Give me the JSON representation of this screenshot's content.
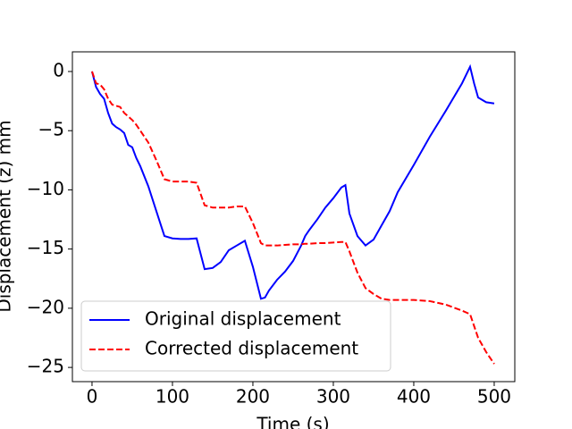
{
  "chart_data": {
    "type": "line",
    "xlabel": "Time (s)",
    "ylabel": "Displacement (z) mm",
    "x": [
      0,
      5,
      10,
      15,
      20,
      25,
      30,
      35,
      40,
      45,
      50,
      55,
      60,
      70,
      80,
      90,
      100,
      110,
      120,
      130,
      140,
      150,
      160,
      170,
      180,
      190,
      200,
      210,
      215,
      220,
      230,
      240,
      250,
      260,
      265,
      270,
      280,
      290,
      300,
      310,
      315,
      320,
      330,
      340,
      350,
      360,
      370,
      380,
      400,
      420,
      440,
      460,
      470,
      475,
      480,
      490,
      500
    ],
    "series": [
      {
        "name": "Original displacement",
        "color": "#0000ff",
        "style": "solid",
        "values": [
          0,
          -1.3,
          -1.9,
          -2.3,
          -3.5,
          -4.4,
          -4.7,
          -4.9,
          -5.2,
          -6.2,
          -6.4,
          -7.3,
          -8.0,
          -9.7,
          -11.8,
          -13.9,
          -14.1,
          -14.15,
          -14.15,
          -14.1,
          -16.7,
          -16.6,
          -16.1,
          -15.1,
          -14.7,
          -14.3,
          -16.5,
          -19.2,
          -19.1,
          -18.5,
          -17.6,
          -16.9,
          -16.0,
          -14.7,
          -13.9,
          -13.4,
          -12.5,
          -11.5,
          -10.7,
          -9.8,
          -9.6,
          -12.0,
          -13.9,
          -14.7,
          -14.2,
          -13.0,
          -11.8,
          -10.2,
          -7.9,
          -5.5,
          -3.3,
          -1.0,
          0.4,
          -1.0,
          -2.2,
          -2.6,
          -2.7
        ]
      },
      {
        "name": "Corrected displacement",
        "color": "#ff0000",
        "style": "dashed",
        "values": [
          0,
          -1.0,
          -1.1,
          -1.5,
          -2.3,
          -2.8,
          -2.9,
          -3.0,
          -3.5,
          -3.8,
          -4.1,
          -4.5,
          -5.0,
          -6.0,
          -7.5,
          -9.1,
          -9.3,
          -9.3,
          -9.3,
          -9.4,
          -11.3,
          -11.5,
          -11.5,
          -11.5,
          -11.4,
          -11.4,
          -12.8,
          -14.5,
          -14.7,
          -14.7,
          -14.7,
          -14.65,
          -14.6,
          -14.6,
          -14.55,
          -14.55,
          -14.5,
          -14.5,
          -14.45,
          -14.4,
          -14.4,
          -15.2,
          -17.0,
          -18.3,
          -18.8,
          -19.2,
          -19.3,
          -19.3,
          -19.3,
          -19.4,
          -19.7,
          -20.2,
          -20.5,
          -21.5,
          -22.5,
          -23.7,
          -24.7
        ]
      }
    ],
    "xlim": [
      -24.4,
      525.6
    ],
    "ylim": [
      -26.2,
      1.66
    ],
    "xticks": [
      0,
      100,
      200,
      300,
      400,
      500
    ],
    "yticks": [
      0,
      {
        "value": -5,
        "label": "−5"
      },
      {
        "value": -10,
        "label": "−10"
      },
      {
        "value": -15,
        "label": "−15"
      },
      {
        "value": -20,
        "label": "−20"
      },
      {
        "value": -25,
        "label": "−25"
      }
    ],
    "legend": "lower left"
  }
}
